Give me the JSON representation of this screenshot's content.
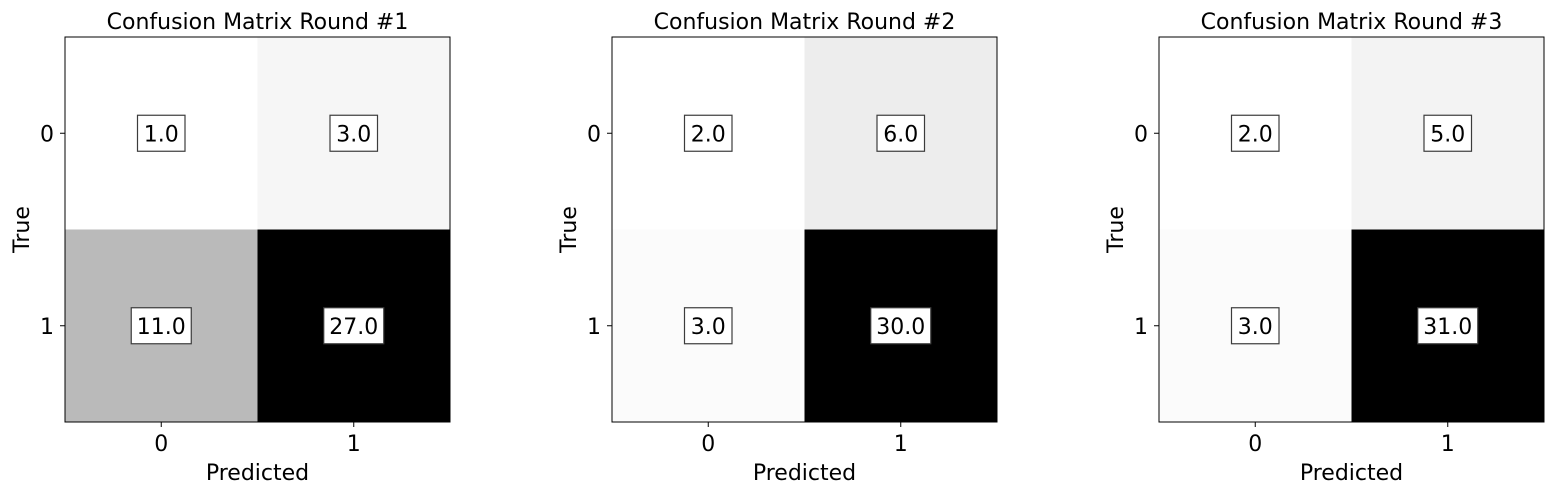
{
  "chart_data": [
    {
      "type": "heatmap",
      "title": "Confusion Matrix Round #1",
      "xlabel": "Predicted",
      "ylabel": "True",
      "x_categories": [
        "0",
        "1"
      ],
      "y_categories": [
        "0",
        "1"
      ],
      "values": [
        [
          1.0,
          3.0
        ],
        [
          11.0,
          27.0
        ]
      ],
      "value_labels": [
        [
          "1.0",
          "3.0"
        ],
        [
          "11.0",
          "27.0"
        ]
      ],
      "colormap": "Greys",
      "color_range": [
        1.0,
        27.0
      ]
    },
    {
      "type": "heatmap",
      "title": "Confusion Matrix Round #2",
      "xlabel": "Predicted",
      "ylabel": "True",
      "x_categories": [
        "0",
        "1"
      ],
      "y_categories": [
        "0",
        "1"
      ],
      "values": [
        [
          2.0,
          6.0
        ],
        [
          3.0,
          30.0
        ]
      ],
      "value_labels": [
        [
          "2.0",
          "6.0"
        ],
        [
          "3.0",
          "30.0"
        ]
      ],
      "colormap": "Greys",
      "color_range": [
        2.0,
        30.0
      ]
    },
    {
      "type": "heatmap",
      "title": "Confusion Matrix Round #3",
      "xlabel": "Predicted",
      "ylabel": "True",
      "x_categories": [
        "0",
        "1"
      ],
      "y_categories": [
        "0",
        "1"
      ],
      "values": [
        [
          2.0,
          5.0
        ],
        [
          3.0,
          31.0
        ]
      ],
      "value_labels": [
        [
          "2.0",
          "5.0"
        ],
        [
          "3.0",
          "31.0"
        ]
      ],
      "colormap": "Greys",
      "color_range": [
        2.0,
        31.0
      ]
    }
  ]
}
